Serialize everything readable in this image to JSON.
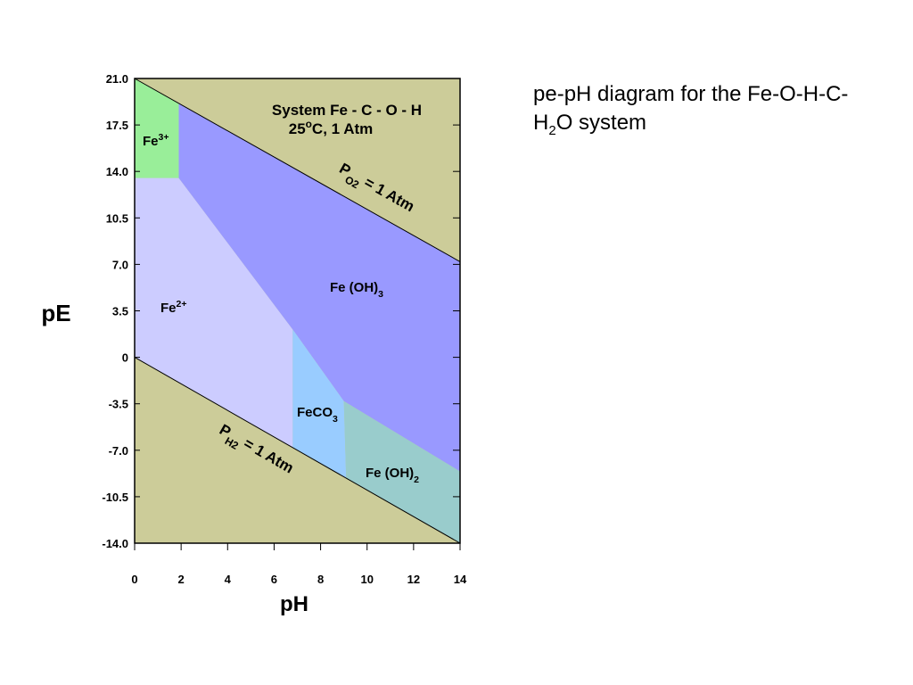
{
  "caption": [
    {
      "text": "pe-pH diagram for the Fe-O-H-C-H"
    },
    {
      "text": "2",
      "shift": "sub"
    },
    {
      "text": "O system"
    }
  ],
  "chart_data": {
    "type": "region",
    "x_label": "pH",
    "y_label": "pE",
    "xlim": [
      0,
      14
    ],
    "ylim": [
      -14,
      21
    ],
    "xticks": [
      0,
      2,
      4,
      6,
      8,
      10,
      12,
      14
    ],
    "yticks": [
      {
        "value": 21,
        "label": "21.0"
      },
      {
        "value": 17.5,
        "label": "17.5"
      },
      {
        "value": 14,
        "label": "14.0"
      },
      {
        "value": 10.5,
        "label": "10.5"
      },
      {
        "value": 7,
        "label": "7.0"
      },
      3.5,
      0,
      -3.5,
      {
        "value": -7,
        "label": "-7.0"
      },
      -10.5,
      {
        "value": -14,
        "label": "-14.0"
      }
    ],
    "background": "#cccc99",
    "title": [
      [
        {
          "text": "System Fe - C - O - H"
        }
      ],
      [
        {
          "text": "25"
        },
        {
          "text": "o",
          "shift": "super"
        },
        {
          "text": "C, 1 Atm"
        }
      ]
    ],
    "regions": [
      {
        "label": [
          {
            "text": "Fe"
          },
          {
            "text": "3+",
            "shift": "super"
          }
        ],
        "color": "#99ee99",
        "x": [
          0,
          1.9,
          1.9,
          0
        ],
        "y": [
          21,
          19.1,
          13.5,
          13.5
        ]
      },
      {
        "label": [
          {
            "text": "Fe"
          },
          {
            "text": "2+",
            "shift": "super"
          }
        ],
        "color": "#ccccff",
        "x": [
          0,
          1.9,
          6.8,
          6.8,
          0
        ],
        "y": [
          13.5,
          13.5,
          2.1,
          -6.8,
          0
        ]
      },
      {
        "label": [
          {
            "text": "Fe (OH)"
          },
          {
            "text": "3",
            "shift": "sub"
          }
        ],
        "color": "#9999ff",
        "x": [
          1.9,
          14,
          14,
          9,
          6.8,
          1.9
        ],
        "y": [
          19.1,
          7.2,
          -8.6,
          -3.3,
          2.1,
          13.5
        ]
      },
      {
        "label": [
          {
            "text": "FeCO"
          },
          {
            "text": "3",
            "shift": "sub"
          }
        ],
        "color": "#99ccff",
        "x": [
          6.8,
          9,
          9.1,
          6.8
        ],
        "y": [
          2.1,
          -3.3,
          -9.1,
          -6.8
        ]
      },
      {
        "label": [
          {
            "text": "Fe (OH)"
          },
          {
            "text": "2",
            "shift": "sub"
          }
        ],
        "color": "#99cccc",
        "x": [
          9,
          14,
          14,
          9.1
        ],
        "y": [
          -3.3,
          -8.6,
          -14,
          -9.1
        ]
      }
    ],
    "lines": [
      {
        "label": [
          {
            "text": "P"
          },
          {
            "text": "O",
            "shift": "sub"
          },
          {
            "text": "2",
            "shift": "sub"
          },
          {
            "text": " = 1 Atm"
          }
        ],
        "x": [
          0,
          14
        ],
        "y": [
          21,
          7.2
        ]
      },
      {
        "label": [
          {
            "text": "P"
          },
          {
            "text": "H",
            "shift": "sub"
          },
          {
            "text": "2",
            "shift": "sub"
          },
          {
            "text": " = 1 Atm"
          }
        ],
        "x": [
          0,
          14
        ],
        "y": [
          0,
          -14
        ]
      }
    ]
  }
}
